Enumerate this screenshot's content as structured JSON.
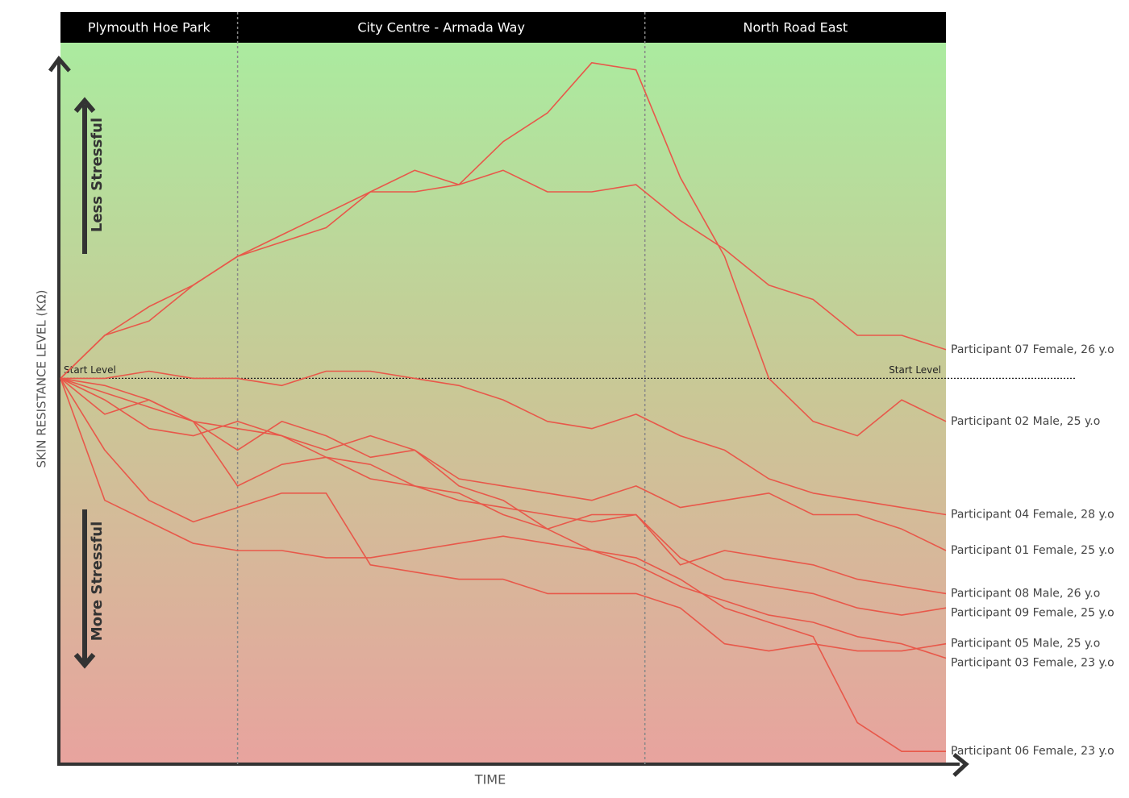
{
  "chart_data": {
    "type": "line",
    "x_label": "TIME",
    "y_label": "SKIN RESISTANCE LEVEL (KΩ)",
    "annotations": {
      "up": "Less Stressful",
      "down": "More Stressful"
    },
    "start_level": {
      "value": 54,
      "label": "Start Level"
    },
    "regions": [
      {
        "label": "Plymouth Hoe Park",
        "start": 0,
        "end": 20
      },
      {
        "label": "City Centre - Armada Way",
        "start": 20,
        "end": 66
      },
      {
        "label": "North Road East",
        "start": 66,
        "end": 100
      }
    ],
    "xlim": [
      0,
      100
    ],
    "ylim": [
      0,
      100
    ],
    "color": "#e8584a",
    "x": [
      0,
      5,
      10,
      15,
      20,
      25,
      30,
      35,
      40,
      45,
      50,
      55,
      60,
      65,
      70,
      75,
      80,
      85,
      90,
      95,
      100
    ],
    "series": [
      {
        "name": "Participant 07 Female, 26 y.o",
        "values": [
          54,
          60,
          62,
          67,
          71,
          73,
          75,
          80,
          80,
          81,
          83,
          80,
          80,
          81,
          76,
          72,
          67,
          65,
          60,
          60,
          58
        ]
      },
      {
        "name": "Participant 02 Male, 25 y.o",
        "values": [
          54,
          60,
          64,
          67,
          71,
          74,
          77,
          80,
          83,
          81,
          87,
          91,
          98,
          97,
          82,
          71,
          54,
          48,
          46,
          51,
          48
        ]
      },
      {
        "name": "Participant 04 Female, 28 y.o",
        "values": [
          54,
          54,
          55,
          54,
          54,
          53,
          55,
          55,
          54,
          53,
          51,
          48,
          47,
          49,
          46,
          44,
          40,
          38,
          37,
          36,
          35
        ]
      },
      {
        "name": "Participant 01 Female, 25 y.o",
        "values": [
          54,
          51,
          47,
          46,
          48,
          46,
          44,
          46,
          44,
          40,
          39,
          38,
          37,
          39,
          36,
          37,
          38,
          35,
          35,
          33,
          30
        ]
      },
      {
        "name": "Participant 08 Male, 26 y.o",
        "values": [
          54,
          49,
          51,
          48,
          44,
          48,
          46,
          43,
          44,
          39,
          37,
          33,
          35,
          35,
          28,
          30,
          29,
          28,
          26,
          25,
          24
        ]
      },
      {
        "name": "Participant 09 Female, 25 y.o",
        "values": [
          54,
          53,
          51,
          48,
          39,
          42,
          43,
          40,
          39,
          37,
          36,
          35,
          34,
          35,
          29,
          26,
          25,
          24,
          22,
          21,
          22
        ]
      },
      {
        "name": "Participant 05 Male, 25 y.o",
        "values": [
          54,
          44,
          37,
          34,
          36,
          38,
          38,
          28,
          27,
          26,
          26,
          24,
          24,
          24,
          22,
          17,
          16,
          17,
          16,
          16,
          17
        ]
      },
      {
        "name": "Participant 03 Female, 23 y.o",
        "values": [
          54,
          52,
          50,
          48,
          47,
          46,
          43,
          42,
          39,
          38,
          35,
          33,
          30,
          28,
          25,
          23,
          21,
          20,
          18,
          17,
          15
        ]
      },
      {
        "name": "Participant 06 Female, 23 y.o",
        "values": [
          54,
          37,
          34,
          31,
          30,
          30,
          29,
          29,
          30,
          31,
          32,
          31,
          30,
          29,
          26,
          22,
          20,
          18,
          6,
          2,
          2
        ]
      }
    ]
  }
}
